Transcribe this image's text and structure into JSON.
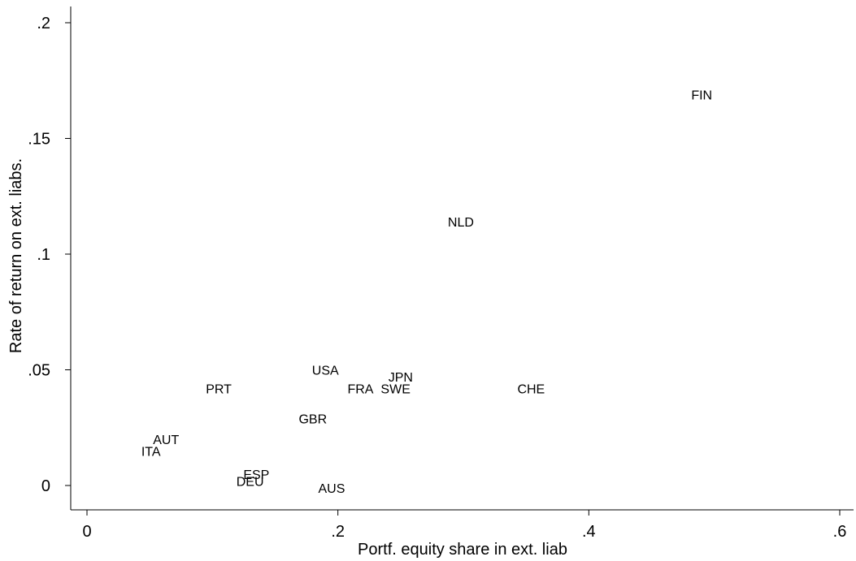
{
  "chart_data": {
    "type": "scatter",
    "title": "",
    "xlabel": "Portf. equity share in ext. liab",
    "ylabel": "Rate of return on ext. liabs.",
    "xlim": [
      -0.01,
      0.61
    ],
    "ylim": [
      -0.011,
      0.206
    ],
    "xticks": [
      0,
      0.2,
      0.4,
      0.6
    ],
    "xtick_labels": [
      "0",
      ".2",
      ".4",
      ".6"
    ],
    "yticks": [
      0,
      0.05,
      0.1,
      0.15,
      0.2
    ],
    "ytick_labels": [
      "0",
      ".05",
      ".1",
      ".15",
      ".2"
    ],
    "grid": false,
    "points": [
      {
        "label": "FIN",
        "x": 0.49,
        "y": 0.169
      },
      {
        "label": "NLD",
        "x": 0.298,
        "y": 0.114
      },
      {
        "label": "USA",
        "x": 0.19,
        "y": 0.05
      },
      {
        "label": "JPN",
        "x": 0.25,
        "y": 0.047
      },
      {
        "label": "FRA",
        "x": 0.218,
        "y": 0.042
      },
      {
        "label": "SWE",
        "x": 0.246,
        "y": 0.042
      },
      {
        "label": "CHE",
        "x": 0.354,
        "y": 0.042
      },
      {
        "label": "PRT",
        "x": 0.105,
        "y": 0.042
      },
      {
        "label": "GBR",
        "x": 0.18,
        "y": 0.029
      },
      {
        "label": "AUT",
        "x": 0.063,
        "y": 0.02
      },
      {
        "label": "ITA",
        "x": 0.051,
        "y": 0.015
      },
      {
        "label": "ESP",
        "x": 0.135,
        "y": 0.005
      },
      {
        "label": "DEU",
        "x": 0.13,
        "y": 0.002
      },
      {
        "label": "AUS",
        "x": 0.195,
        "y": -0.001
      }
    ]
  }
}
